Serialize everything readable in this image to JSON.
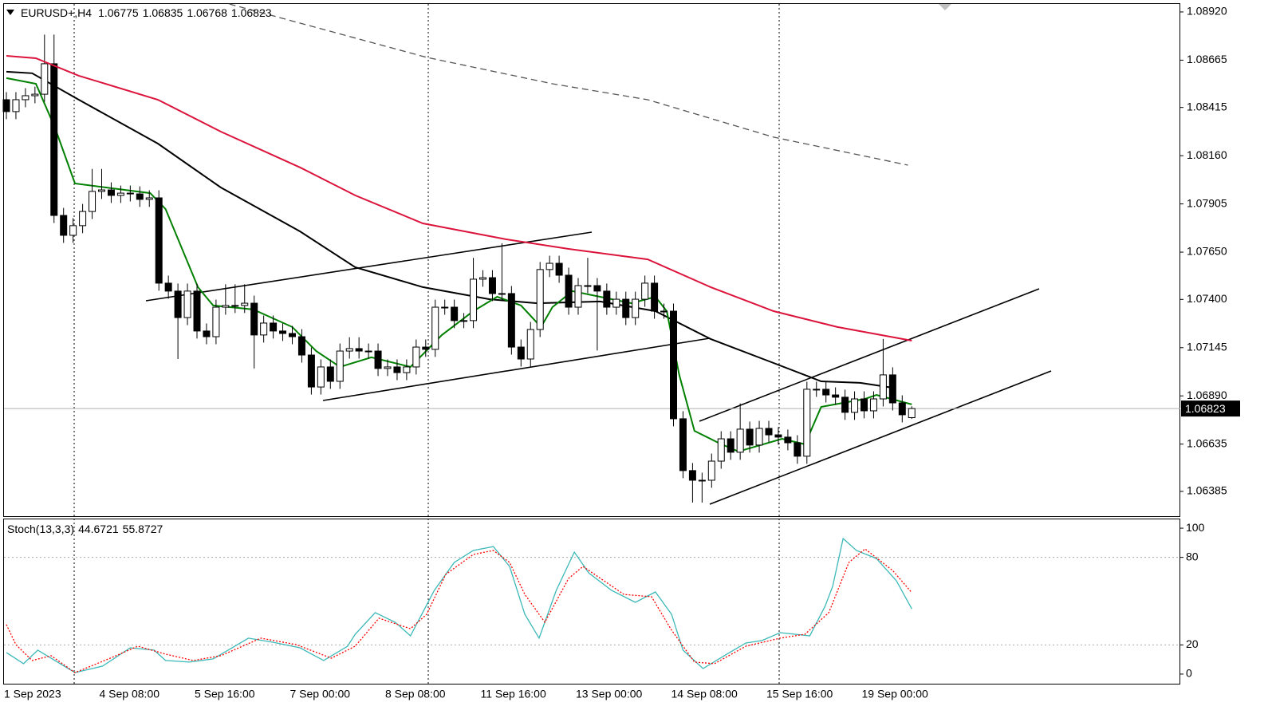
{
  "chart_data": {
    "type": "candlestick",
    "symbol": "EURUSD+,H4",
    "categories": [
      "1 Sep 2023",
      null,
      null,
      null,
      null,
      null,
      null,
      null,
      null,
      null,
      "4 Sep 08:00",
      null,
      null,
      null,
      null,
      null,
      null,
      null,
      null,
      null,
      "5 Sep 16:00",
      null,
      null,
      null,
      null,
      null,
      null,
      null,
      null,
      null,
      "7 Sep 00:00",
      null,
      null,
      null,
      null,
      null,
      null,
      null,
      null,
      null,
      "8 Sep 08:00",
      null,
      null,
      null,
      null,
      null,
      null,
      null,
      null,
      null,
      "11 Sep 16:00",
      null,
      null,
      null,
      null,
      null,
      null,
      null,
      null,
      null,
      "13 Sep 00:00",
      null,
      null,
      null,
      null,
      null,
      null,
      null,
      null,
      null,
      "14 Sep 08:00",
      null,
      null,
      null,
      null,
      null,
      null,
      null,
      null,
      null,
      "15 Sep 16:00",
      null,
      null,
      null,
      null,
      null,
      null,
      null,
      null,
      null,
      "19 Sep 00:00",
      null,
      null,
      null,
      null,
      null
    ],
    "candles": {
      "open": [
        1.08456,
        1.08393,
        1.08456,
        1.08477,
        1.08485,
        1.08646,
        1.07844,
        1.07739,
        1.0779,
        1.07865,
        1.07971,
        1.07979,
        1.0795,
        1.07962,
        1.07958,
        1.07929,
        1.07937,
        1.07486,
        1.07444,
        1.07304,
        1.07444,
        1.07233,
        1.07203,
        1.07359,
        1.07368,
        1.07368,
        1.0738,
        1.07212,
        1.07275,
        1.07233,
        1.0722,
        1.07203,
        1.07106,
        1.06937,
        1.07043,
        1.06967,
        1.07127,
        1.0714,
        1.07127,
        1.07127,
        1.07035,
        1.07043,
        1.07013,
        1.07043,
        1.07148,
        1.07136,
        1.07359,
        1.07359,
        1.07288,
        1.07288,
        1.07507,
        1.07515,
        1.07431,
        1.07431,
        1.07148,
        1.07085,
        1.07241,
        1.07558,
        1.07591,
        1.07528,
        1.07359,
        1.07473,
        1.07473,
        1.07444,
        1.07359,
        1.07401,
        1.07304,
        1.07401,
        1.07486,
        1.07338,
        1.07338,
        1.06769,
        1.06495,
        1.06444,
        1.06444,
        1.06545,
        1.06663,
        1.06592,
        1.06714,
        1.0663,
        1.06718,
        1.06684,
        1.06672,
        1.06642,
        1.06571,
        1.06925,
        1.06925,
        1.06895,
        1.06883,
        1.06803,
        1.06874,
        1.06811,
        1.06874,
        1.07001,
        1.06853,
        1.06775
      ],
      "high": [
        1.08496,
        1.08496,
        1.08517,
        1.08525,
        1.088,
        1.088,
        1.07884,
        1.0783,
        1.07905,
        1.0809,
        1.0809,
        1.08019,
        1.08002,
        1.08002,
        1.07998,
        1.07977,
        1.07977,
        1.07526,
        1.07484,
        1.07484,
        1.07484,
        1.07273,
        1.07399,
        1.0748,
        1.0748,
        1.0748,
        1.0742,
        1.07315,
        1.07315,
        1.07273,
        1.0726,
        1.07243,
        1.07146,
        1.07083,
        1.07083,
        1.07167,
        1.072,
        1.072,
        1.07167,
        1.07167,
        1.07083,
        1.07083,
        1.07083,
        1.07188,
        1.07188,
        1.07399,
        1.07399,
        1.07399,
        1.07328,
        1.0762,
        1.07555,
        1.07555,
        1.07697,
        1.07471,
        1.07188,
        1.07281,
        1.07598,
        1.07631,
        1.07631,
        1.07568,
        1.07513,
        1.0762,
        1.07513,
        1.07484,
        1.07441,
        1.07441,
        1.07441,
        1.07526,
        1.07526,
        1.07378,
        1.07378,
        1.06809,
        1.06535,
        1.06484,
        1.06585,
        1.06703,
        1.06703,
        1.0685,
        1.06754,
        1.06758,
        1.06758,
        1.06724,
        1.06712,
        1.06682,
        1.06965,
        1.06965,
        1.06965,
        1.06935,
        1.06923,
        1.06914,
        1.06914,
        1.06914,
        1.07191,
        1.07041,
        1.06893,
        1.06835
      ],
      "low": [
        1.08353,
        1.08353,
        1.08416,
        1.08437,
        1.08445,
        1.07804,
        1.07699,
        1.07699,
        1.0775,
        1.07825,
        1.07931,
        1.0791,
        1.0791,
        1.07918,
        1.07889,
        1.07889,
        1.07446,
        1.07404,
        1.07085,
        1.07264,
        1.07193,
        1.07163,
        1.07163,
        1.07319,
        1.07328,
        1.07328,
        1.07035,
        1.07172,
        1.07193,
        1.0718,
        1.07163,
        1.07066,
        1.06897,
        1.06897,
        1.06927,
        1.06927,
        1.07087,
        1.07087,
        1.07087,
        1.06995,
        1.06995,
        1.06973,
        1.06973,
        1.07003,
        1.07096,
        1.07096,
        1.07319,
        1.07248,
        1.07248,
        1.07248,
        1.07467,
        1.07391,
        1.07391,
        1.07108,
        1.07045,
        1.07045,
        1.07201,
        1.07518,
        1.07488,
        1.07319,
        1.07319,
        1.07433,
        1.0713,
        1.07319,
        1.07319,
        1.07264,
        1.07264,
        1.07361,
        1.07298,
        1.07298,
        1.06729,
        1.06455,
        1.06326,
        1.06326,
        1.06404,
        1.06505,
        1.06552,
        1.06552,
        1.0659,
        1.0659,
        1.06644,
        1.06632,
        1.06602,
        1.06531,
        1.06531,
        1.06885,
        1.06855,
        1.06843,
        1.06763,
        1.06763,
        1.06771,
        1.06771,
        1.06834,
        1.06813,
        1.0675,
        1.06768
      ],
      "close": [
        1.08393,
        1.08456,
        1.08477,
        1.08485,
        1.08646,
        1.07844,
        1.07739,
        1.0779,
        1.07865,
        1.07971,
        1.07979,
        1.0795,
        1.07962,
        1.07958,
        1.07929,
        1.07937,
        1.07486,
        1.07444,
        1.07304,
        1.07444,
        1.07233,
        1.07203,
        1.07359,
        1.07368,
        1.07368,
        1.0738,
        1.07212,
        1.07275,
        1.07233,
        1.0722,
        1.07203,
        1.07106,
        1.06937,
        1.07043,
        1.06967,
        1.07127,
        1.0714,
        1.07127,
        1.07127,
        1.07035,
        1.07043,
        1.07013,
        1.07043,
        1.07148,
        1.07136,
        1.07359,
        1.07359,
        1.07288,
        1.07288,
        1.07507,
        1.07515,
        1.07431,
        1.07431,
        1.07148,
        1.07085,
        1.07241,
        1.07558,
        1.07591,
        1.07528,
        1.07359,
        1.07473,
        1.07473,
        1.07444,
        1.07359,
        1.07401,
        1.07304,
        1.07401,
        1.07486,
        1.07338,
        1.07338,
        1.06769,
        1.06495,
        1.06444,
        1.06444,
        1.06545,
        1.06663,
        1.06592,
        1.06714,
        1.0663,
        1.06718,
        1.06684,
        1.06672,
        1.06642,
        1.06571,
        1.06925,
        1.06925,
        1.06895,
        1.06883,
        1.06803,
        1.06874,
        1.06811,
        1.06874,
        1.07001,
        1.06853,
        1.0679,
        1.06823
      ]
    },
    "bull_color": "#ffffff",
    "bear_color": "#000000",
    "lines": [
      {
        "color": "#dc143c",
        "style": "solid",
        "x": [
          0,
          3.1,
          7.6,
          15.9,
          22.5,
          30.8,
          36.6,
          43.7,
          52.4,
          59,
          67.3,
          73.9,
          80.5,
          87.2,
          95
        ],
        "values": [
          1.08688,
          1.08675,
          1.08583,
          1.08456,
          1.08287,
          1.08098,
          1.0795,
          1.07802,
          1.07718,
          1.07667,
          1.07612,
          1.07465,
          1.07338,
          1.07254,
          1.07182
        ]
      },
      {
        "color": "#000000",
        "style": "solid",
        "x": [
          0,
          2.7,
          7.6,
          15.9,
          22.5,
          30.8,
          36.6,
          43.7,
          50.7,
          55.7,
          62.3,
          68.1,
          73.9,
          80.5,
          85.5,
          89.6,
          93
        ],
        "values": [
          1.08604,
          1.08596,
          1.08456,
          1.08224,
          1.07992,
          1.0776,
          1.0757,
          1.07465,
          1.07401,
          1.0738,
          1.07389,
          1.07338,
          1.07191,
          1.07064,
          1.06967,
          1.06959,
          1.06933
        ]
      },
      {
        "color": "#008000",
        "style": "solid",
        "x": [
          0,
          3.1,
          5.1,
          7.2,
          15.1,
          16.7,
          20.1,
          21.7,
          25.9,
          30,
          32.5,
          35,
          38.3,
          42.4,
          45.7,
          49,
          51.5,
          54,
          56.1,
          57.3,
          59.4,
          65.6,
          68.1,
          69.3,
          70.6,
          72.2,
          74.7,
          76.8,
          81.4,
          83.8,
          85.5,
          90.1,
          91.3,
          95
        ],
        "values": [
          1.0857,
          1.0854,
          1.08308,
          1.08013,
          1.07962,
          1.07878,
          1.07465,
          1.07368,
          1.07347,
          1.07254,
          1.07127,
          1.07043,
          1.07094,
          1.07043,
          1.07212,
          1.07338,
          1.07414,
          1.07368,
          1.07254,
          1.07359,
          1.07444,
          1.0738,
          1.07414,
          1.07338,
          1.07001,
          1.06705,
          1.06642,
          1.06596,
          1.06663,
          1.06634,
          1.06832,
          1.06874,
          1.06895,
          1.06845
        ]
      },
      {
        "color": "#555555",
        "style": "dashed",
        "x": [
          23.4,
          44.1,
          57.3,
          67.3,
          80.5,
          94.6
        ],
        "values": [
          1.08962,
          1.0868,
          1.0854,
          1.08456,
          1.08258,
          1.0811
        ]
      }
    ],
    "ylim": [
      1.06254,
      1.08962
    ],
    "yticks": [
      {
        "value": 1.0892,
        "label": "1.08920"
      },
      {
        "value": 1.08665,
        "label": "1.08665"
      },
      {
        "value": 1.08415,
        "label": "1.08415"
      },
      {
        "value": 1.0816,
        "label": "1.08160"
      },
      {
        "value": 1.07905,
        "label": "1.07905"
      },
      {
        "value": 1.0765,
        "label": "1.07650"
      },
      {
        "value": 1.074,
        "label": "1.07400"
      },
      {
        "value": 1.07145,
        "label": "1.07145"
      },
      {
        "value": 1.0689,
        "label": "1.06890"
      },
      {
        "value": 1.06635,
        "label": "1.06635"
      },
      {
        "value": 1.06385,
        "label": "1.06385"
      }
    ],
    "stoch": {
      "title": "Stoch(13,3,3)",
      "ylim": [
        -6.6,
        105.5
      ],
      "yticks": [
        100,
        80,
        20,
        0
      ],
      "levels": [
        80,
        20
      ],
      "series": [
        {
          "color": "#3cb8b8",
          "style": "solid",
          "x": [
            0,
            1.8,
            3.3,
            5.1,
            7.2,
            10.1,
            13,
            15.5,
            16.7,
            19.2,
            21.7,
            25.4,
            27.9,
            30.8,
            33.3,
            35.8,
            36.6,
            38.7,
            40.8,
            42.4,
            44.9,
            47,
            49,
            51.1,
            52.8,
            54.4,
            55.9,
            57.7,
            59.6,
            61.1,
            63.5,
            66,
            68.1,
            69.8,
            71,
            73.1,
            75.6,
            77.6,
            79.3,
            81.2,
            84.3,
            85.9,
            86.7,
            87.8,
            89.2,
            91.3,
            93.4,
            95
          ],
          "values": [
            14.8,
            7.1,
            16.4,
            9.3,
            1,
            5.5,
            18,
            16.4,
            9.3,
            8.2,
            10.4,
            24.6,
            21.9,
            18,
            9.3,
            19.1,
            27.3,
            42.1,
            35.5,
            26.2,
            57.4,
            76.5,
            84.7,
            87.4,
            73.8,
            41,
            24.6,
            57.4,
            83.6,
            69.4,
            57.4,
            49.2,
            56.3,
            41,
            16.4,
            3.8,
            13.7,
            21.3,
            23,
            28.4,
            26.2,
            46.4,
            60.1,
            92.9,
            84.7,
            79.2,
            63.9,
            44.6721
          ]
        },
        {
          "color": "#ff0000",
          "style": "dotted",
          "x": [
            0,
            1,
            2.7,
            4.7,
            7.2,
            10.9,
            13.8,
            16.7,
            19.6,
            22.5,
            26.7,
            30.4,
            34.1,
            36.6,
            39.1,
            42.4,
            44.1,
            46.1,
            49,
            51.1,
            52.8,
            54.4,
            56.5,
            59,
            60.5,
            64.8,
            67.7,
            69.8,
            72.2,
            74.3,
            77.6,
            81.2,
            83.8,
            86.3,
            88.4,
            90.1,
            93,
            95
          ],
          "values": [
            33.9,
            20.2,
            9.3,
            12.6,
            1,
            10.9,
            19.1,
            13.7,
            9.3,
            12.6,
            24.6,
            20.2,
            10.9,
            19.1,
            38.3,
            31.1,
            41,
            68.3,
            82,
            84.7,
            76.5,
            54.6,
            35.5,
            65.6,
            73.8,
            54.6,
            53,
            30.1,
            8.2,
            7.1,
            19.1,
            24.6,
            27.3,
            42.1,
            76.5,
            85.8,
            71,
            55.8727
          ]
        }
      ]
    }
  }
}
